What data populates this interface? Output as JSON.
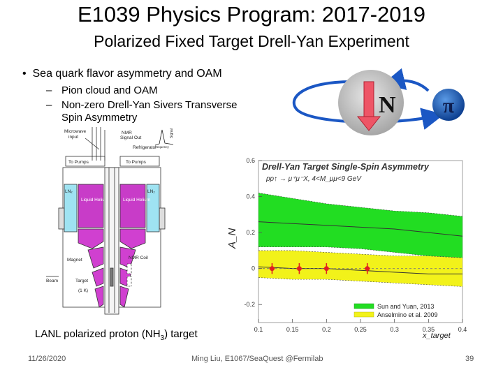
{
  "slide": {
    "title": "E1039 Physics Program: 2017-2019",
    "subtitle": "Polarized Fixed Target Drell-Yan Experiment",
    "bullet": "Sea quark flavor asymmetry and OAM",
    "subbullets": [
      "Pion cloud and OAM",
      "Non-zero Drell-Yan Sivers Transverse",
      "Spin Asymmetry"
    ],
    "caption_before": "LANL polarized proton (NH",
    "caption_sub": "3",
    "caption_after": ") target",
    "footer_date": "11/26/2020",
    "footer_center": "Ming Liu, E1067/SeaQuest @Fermilab",
    "page_number": "39"
  },
  "diagram": {
    "nucleon_label": "N",
    "pion_label": "π",
    "target_labels": {
      "microwave": "Microwave",
      "input": "input",
      "nmr_signal": "NMR",
      "signal_out": "Signal Out",
      "refrigerator": "Refrigerator",
      "to_pumps_left": "To Pumps",
      "to_pumps_right": "To Pumps",
      "ln2_left": "LN₂",
      "ln2_right": "LN₂",
      "liquid_helium_left": "Liquid Helium",
      "liquid_helium_right": "Liquid Helium",
      "magnet": "Magnet",
      "nmr_coil": "NMR Coil",
      "beam": "Beam",
      "target": "Target",
      "insert_temp": "(1 K)",
      "frequency": "frequency",
      "signal": "Signal"
    }
  },
  "chart_data": {
    "type": "area",
    "title": "Drell-Yan Target Single-Spin Asymmetry",
    "subtitle": "pp↑ → μ⁺μ⁻X, 4<M_μμ<9 GeV",
    "xlabel": "x_target",
    "ylabel": "A_N",
    "xlim": [
      0.1,
      0.4
    ],
    "ylim": [
      -0.3,
      0.6
    ],
    "xticks": [
      0.1,
      0.15,
      0.2,
      0.25,
      0.3,
      0.35,
      0.4
    ],
    "xtick_labels": [
      "0.1",
      "0.15",
      "0.2",
      "0.25",
      "0.3",
      "0.35",
      "0.4"
    ],
    "yticks": [
      -0.2,
      0,
      0.2,
      0.4,
      0.6
    ],
    "ytick_labels": [
      "-0.2",
      "0",
      "0.2",
      "0.4",
      "0.6"
    ],
    "series": [
      {
        "name": "Sun and Yuan, 2013",
        "color": "#22dd22",
        "x": [
          0.1,
          0.15,
          0.2,
          0.25,
          0.3,
          0.35,
          0.4
        ],
        "upper": [
          0.42,
          0.39,
          0.36,
          0.34,
          0.32,
          0.31,
          0.29
        ],
        "center": [
          0.26,
          0.25,
          0.24,
          0.23,
          0.22,
          0.2,
          0.18
        ],
        "lower": [
          0.12,
          0.12,
          0.12,
          0.11,
          0.09,
          0.07,
          0.06
        ]
      },
      {
        "name": "Anselmino et al. 2009",
        "color": "#f2f21a",
        "x": [
          0.1,
          0.15,
          0.2,
          0.25,
          0.3,
          0.35,
          0.4
        ],
        "upper": [
          0.1,
          0.1,
          0.09,
          0.08,
          0.07,
          0.07,
          0.06
        ],
        "center": [
          0.01,
          0.0,
          0.0,
          -0.01,
          -0.02,
          -0.03,
          -0.03
        ],
        "lower": [
          -0.05,
          -0.06,
          -0.06,
          -0.07,
          -0.08,
          -0.09,
          -0.1
        ]
      }
    ],
    "points": {
      "color": "#e02020",
      "x": [
        0.12,
        0.16,
        0.2,
        0.26
      ],
      "y": [
        0.0,
        0.0,
        0.0,
        0.0
      ],
      "err": [
        0.03,
        0.03,
        0.03,
        0.03
      ]
    }
  }
}
